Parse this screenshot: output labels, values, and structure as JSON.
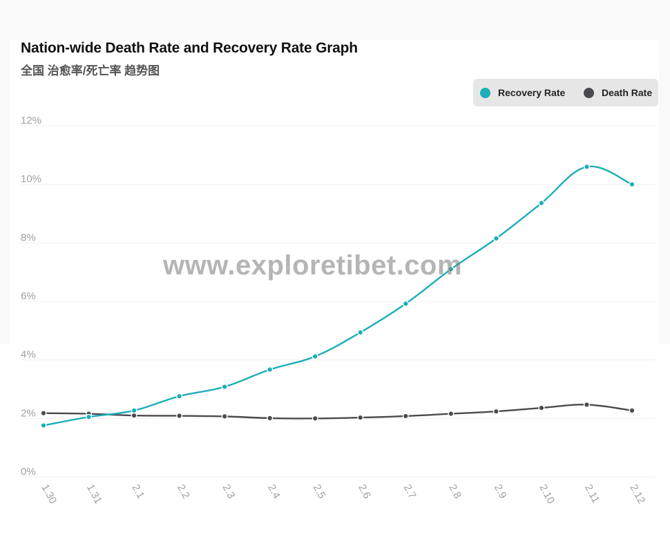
{
  "header": {
    "title": "Nation-wide Death Rate and Recovery Rate Graph",
    "subtitle": "全国 治愈率/死亡率 趋势图"
  },
  "watermark": "www.exploretibet.com",
  "legend": {
    "recovery_label": "Recovery Rate",
    "death_label": "Death Rate"
  },
  "colors": {
    "recovery": "#19aeb8",
    "death": "#4a4a4e",
    "grid": "#f0f0f0",
    "tick": "#a0a0a0"
  },
  "chart_data": {
    "type": "line",
    "title": "Nation-wide Death Rate and Recovery Rate Graph",
    "subtitle": "全国 治愈率/死亡率 趋势图",
    "categories": [
      "1.30",
      "1.31",
      "2.1",
      "2.2",
      "2.3",
      "2.4",
      "2.5",
      "2.6",
      "2.7",
      "2.8",
      "2.9",
      "2.10",
      "2.11",
      "2.12"
    ],
    "y_ticks": [
      "0%",
      "2%",
      "4%",
      "6%",
      "8%",
      "10%",
      "12%"
    ],
    "ylim": [
      0,
      12
    ],
    "y_unit": "%",
    "grid": true,
    "legend_position": "top-right",
    "series": [
      {
        "name": "Recovery Rate",
        "values": [
          1.76,
          2.05,
          2.27,
          2.76,
          3.08,
          3.67,
          4.12,
          4.94,
          5.92,
          7.1,
          8.15,
          9.36,
          10.6,
          10.0
        ]
      },
      {
        "name": "Death Rate",
        "values": [
          2.18,
          2.16,
          2.1,
          2.09,
          2.07,
          2.01,
          2.0,
          2.03,
          2.08,
          2.16,
          2.24,
          2.36,
          2.47,
          2.27
        ]
      }
    ]
  }
}
